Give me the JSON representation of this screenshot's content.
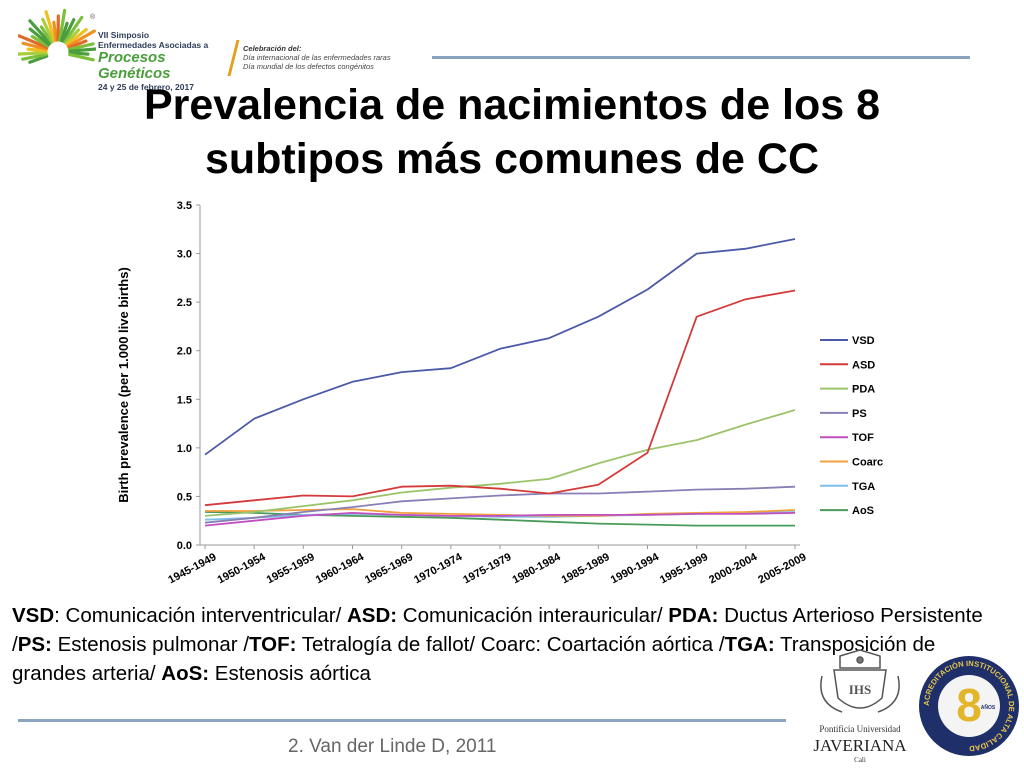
{
  "header": {
    "symposium_lines": [
      "VII Simposio",
      "Enfermedades Asociadas a",
      "Procesos Genéticos",
      "24 y 25 de febrero, 2017"
    ],
    "registered_mark": "®",
    "celebration_title": "Celebración del:",
    "celebration_lines": [
      "Día internacional de las enfermedades raras",
      "Día mundial de los defectos congénitos"
    ]
  },
  "title_lines": [
    "Prevalencia de nacimientos de los 8",
    "subtipos más comunes de CC"
  ],
  "chart_data": {
    "type": "line",
    "ylabel": "Birth prevalence (per 1.000 live births)",
    "ylim": [
      0,
      3.5
    ],
    "yticks": [
      "0.0",
      "0.5",
      "1.0",
      "1.5",
      "2.0",
      "2.5",
      "3.0",
      "3.5"
    ],
    "x": [
      "1945-1949",
      "1950-1954",
      "1955-1959",
      "1960-1964",
      "1965-1969",
      "1970-1974",
      "1975-1979",
      "1980-1984",
      "1985-1989",
      "1990-1994",
      "1995-1999",
      "2000-2004",
      "2005-2009"
    ],
    "legend_position": "right",
    "grid": false,
    "series": [
      {
        "name": "VSD",
        "color": "#4a5aa8",
        "values": [
          0.93,
          1.3,
          1.5,
          1.68,
          1.78,
          1.82,
          2.02,
          2.13,
          2.35,
          2.63,
          3.0,
          3.05,
          3.15
        ]
      },
      {
        "name": "ASD",
        "color": "#d43a3a",
        "values": [
          0.41,
          0.46,
          0.51,
          0.5,
          0.6,
          0.61,
          0.58,
          0.53,
          0.62,
          0.95,
          2.35,
          2.53,
          2.62
        ]
      },
      {
        "name": "PDA",
        "color": "#9bc36a",
        "values": [
          0.3,
          0.34,
          0.4,
          0.46,
          0.54,
          0.59,
          0.63,
          0.68,
          0.84,
          0.98,
          1.08,
          1.24,
          1.39
        ]
      },
      {
        "name": "PS",
        "color": "#8a7fb5",
        "values": [
          0.23,
          0.28,
          0.34,
          0.39,
          0.45,
          0.48,
          0.51,
          0.53,
          0.53,
          0.55,
          0.57,
          0.58,
          0.6
        ]
      },
      {
        "name": "TOF",
        "color": "#c24fc0",
        "values": [
          0.2,
          0.25,
          0.3,
          0.33,
          0.31,
          0.3,
          0.3,
          0.31,
          0.31,
          0.31,
          0.32,
          0.32,
          0.33
        ]
      },
      {
        "name": "Coarc",
        "color": "#f0a040",
        "values": [
          0.35,
          0.35,
          0.36,
          0.37,
          0.33,
          0.32,
          0.31,
          0.3,
          0.3,
          0.32,
          0.33,
          0.34,
          0.36
        ]
      },
      {
        "name": "TGA",
        "color": "#7ec0e6",
        "values": [
          0.26,
          0.28,
          0.31,
          0.32,
          0.31,
          0.3,
          0.29,
          0.29,
          0.3,
          0.31,
          0.32,
          0.33,
          0.34
        ]
      },
      {
        "name": "AoS",
        "color": "#4a9a5a",
        "values": [
          0.34,
          0.33,
          0.31,
          0.3,
          0.29,
          0.28,
          0.26,
          0.24,
          0.22,
          0.21,
          0.2,
          0.2,
          0.2
        ]
      }
    ]
  },
  "caption": {
    "parts": [
      {
        "t": "VSD",
        "b": true
      },
      {
        "t": ": Comunicación interventricular/ ",
        "b": false
      },
      {
        "t": "ASD:",
        "b": true
      },
      {
        "t": " Comunicación interauricular/ ",
        "b": false
      },
      {
        "t": "PDA:",
        "b": true
      },
      {
        "t": " Ductus Arterioso Persistente /",
        "b": false
      },
      {
        "t": "PS:",
        "b": true
      },
      {
        "t": " Estenosis pulmonar /",
        "b": false
      },
      {
        "t": "TOF:",
        "b": true
      },
      {
        "t": " Tetralogía de fallot/ Coarc: Coartación aórtica /",
        "b": false
      },
      {
        "t": "TGA:",
        "b": true
      },
      {
        "t": " Transposición de grandes arteria/ ",
        "b": false
      },
      {
        "t": "AoS:",
        "b": true
      },
      {
        "t": " Estenosis aórtica",
        "b": false
      }
    ]
  },
  "footer": {
    "reference": "2. Van der Linde D, 2011",
    "university_lines": [
      "Pontificia Universidad",
      "JAVERIANA",
      "Cali"
    ],
    "seal_number": "8",
    "seal_text": "ACREDITACIÓN INSTITUCIONAL DE ALTA CALIDAD",
    "seal_years": "AÑOS"
  }
}
